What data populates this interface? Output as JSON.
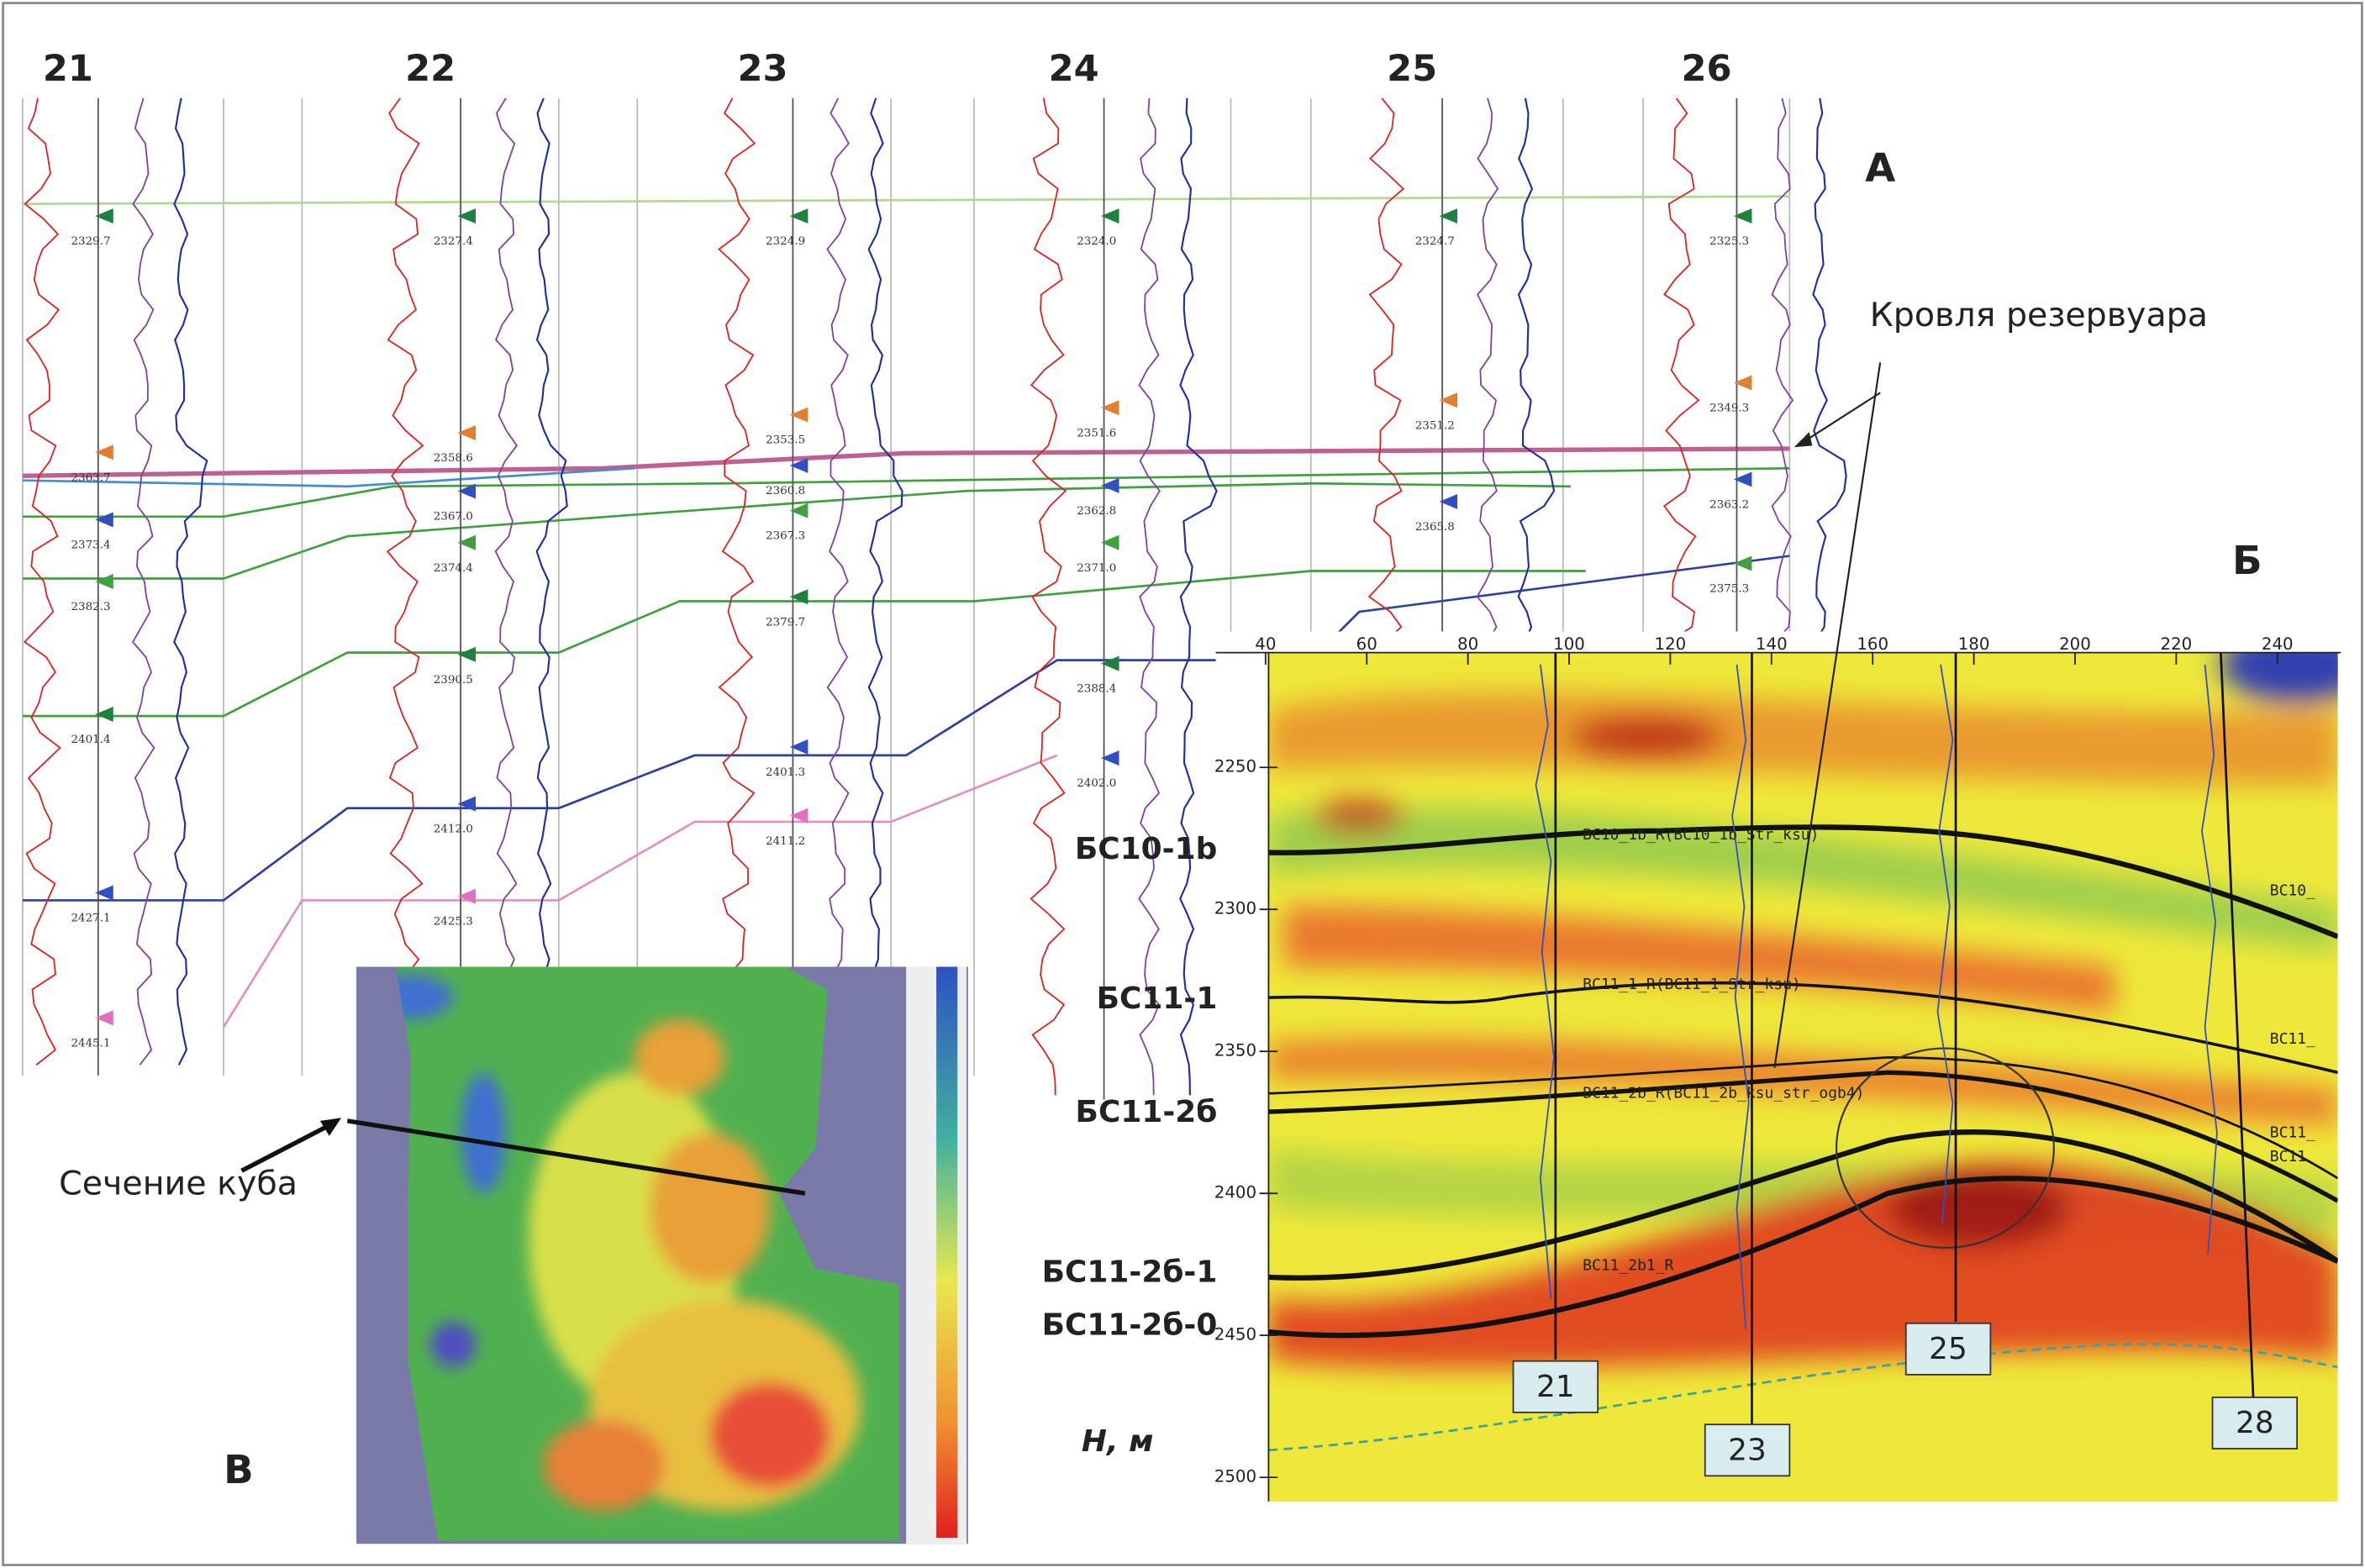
{
  "panel_a": {
    "label": "А",
    "annotation": "Кровля резервуара",
    "wells": [
      {
        "name": "21",
        "tops": [
          "2329.7",
          "2363.7",
          "2373.4",
          "2382.3",
          "2401.4",
          "2427.1",
          "2445.1"
        ]
      },
      {
        "name": "22",
        "tops": [
          "2327.4",
          "2358.6",
          "2367.0",
          "2374.4",
          "2390.5",
          "2412.0",
          "2425.3"
        ]
      },
      {
        "name": "23",
        "tops": [
          "2324.9",
          "2353.5",
          "2360.8",
          "2367.3",
          "2379.7",
          "2401.3",
          "2411.2"
        ]
      },
      {
        "name": "24",
        "tops": [
          "2324.0",
          "2351.6",
          "2362.8",
          "2371.0",
          "2388.4",
          "2402.0"
        ]
      },
      {
        "name": "25",
        "tops": [
          "2324.7",
          "2351.2",
          "2365.8"
        ]
      },
      {
        "name": "26",
        "tops": [
          "2325.3",
          "2349.3",
          "2363.2",
          "2375.3"
        ]
      }
    ]
  },
  "panel_b": {
    "label": "Б",
    "axis_label": "H, м",
    "xticks": [
      40,
      60,
      80,
      100,
      120,
      140,
      160,
      180,
      200,
      220,
      240
    ],
    "yticks": [
      2250,
      2300,
      2350,
      2400,
      2450,
      2500
    ],
    "horizons": [
      "БС10-1b",
      "БС11-1",
      "БС11-2б",
      "БС11-2б-1",
      "БС11-2б-0"
    ],
    "curve_tags": [
      "BC10_1b_R(BC10_1b_Str_ksu)",
      "BC11_1_R(BC11_1_Str_ksu)",
      "BC11_2b_R(BC11_2b_ksu_str_ogb4)",
      "BC11_2b1_R"
    ],
    "edge_tags": [
      "BC10_",
      "BC11_",
      "BC11_",
      "BC11"
    ],
    "well_tags": [
      "21",
      "23",
      "25",
      "28"
    ]
  },
  "panel_v": {
    "label": "В",
    "annotation": "Сечение куба"
  }
}
